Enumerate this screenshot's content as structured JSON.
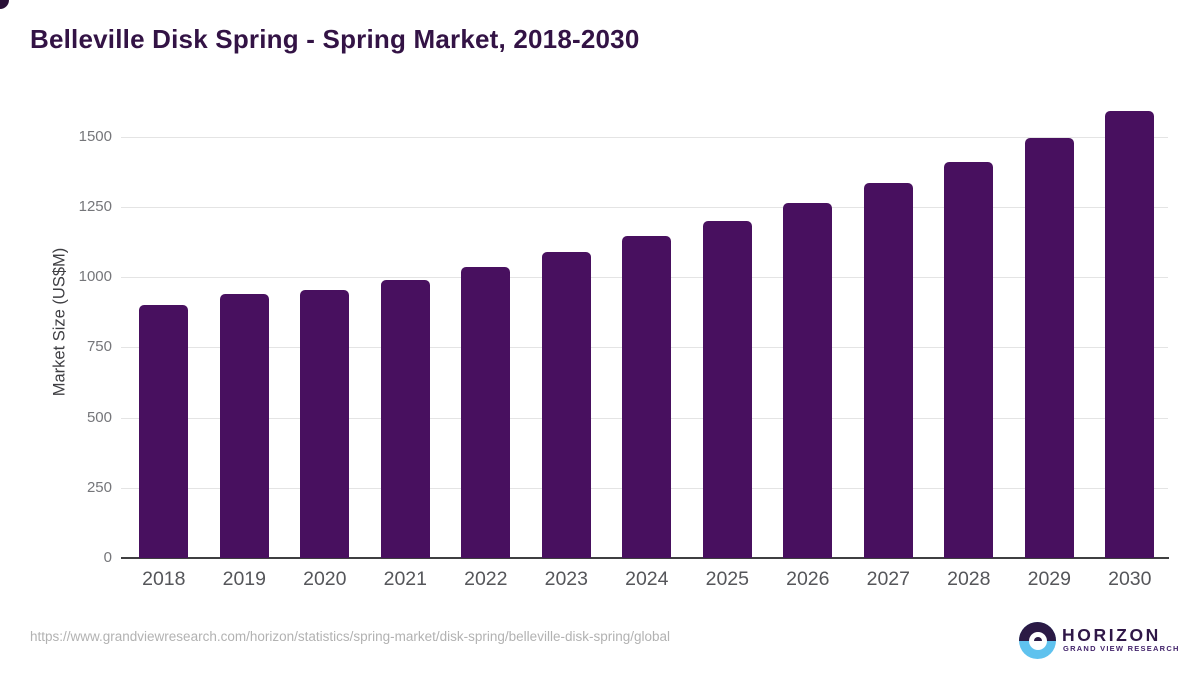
{
  "title": "Belleville Disk Spring - Spring Market, 2018-2030",
  "chart_data": {
    "type": "bar",
    "title": "Belleville Disk Spring - Spring Market, 2018-2030",
    "categories": [
      "2018",
      "2019",
      "2020",
      "2021",
      "2022",
      "2023",
      "2024",
      "2025",
      "2026",
      "2027",
      "2028",
      "2029",
      "2030"
    ],
    "values": [
      900,
      940,
      955,
      990,
      1035,
      1090,
      1145,
      1200,
      1265,
      1335,
      1410,
      1495,
      1590
    ],
    "xlabel": "",
    "ylabel": "Market Size (US$M)",
    "ylim": [
      0,
      1600
    ],
    "yticks": [
      0,
      250,
      500,
      750,
      1000,
      1250,
      1500
    ],
    "grid": true,
    "legend": "none",
    "bar_color": "#48105f"
  },
  "footer": {
    "source_url": "https://www.grandviewresearch.com/horizon/statistics/spring-market/disk-spring/belleville-disk-spring/global",
    "logo": {
      "name": "HORIZON",
      "subtitle": "GRAND VIEW RESEARCH"
    }
  },
  "colors": {
    "bar": "#48105f",
    "title_text": "#331345",
    "axis_line": "#3f3f41",
    "gridline": "#e4e4e4",
    "tick_text": "#75767a",
    "x_tick_text": "#55565a",
    "url_text": "#b2b2b2",
    "logo_dark": "#2b1a45",
    "logo_blue": "#5fc2ee"
  }
}
